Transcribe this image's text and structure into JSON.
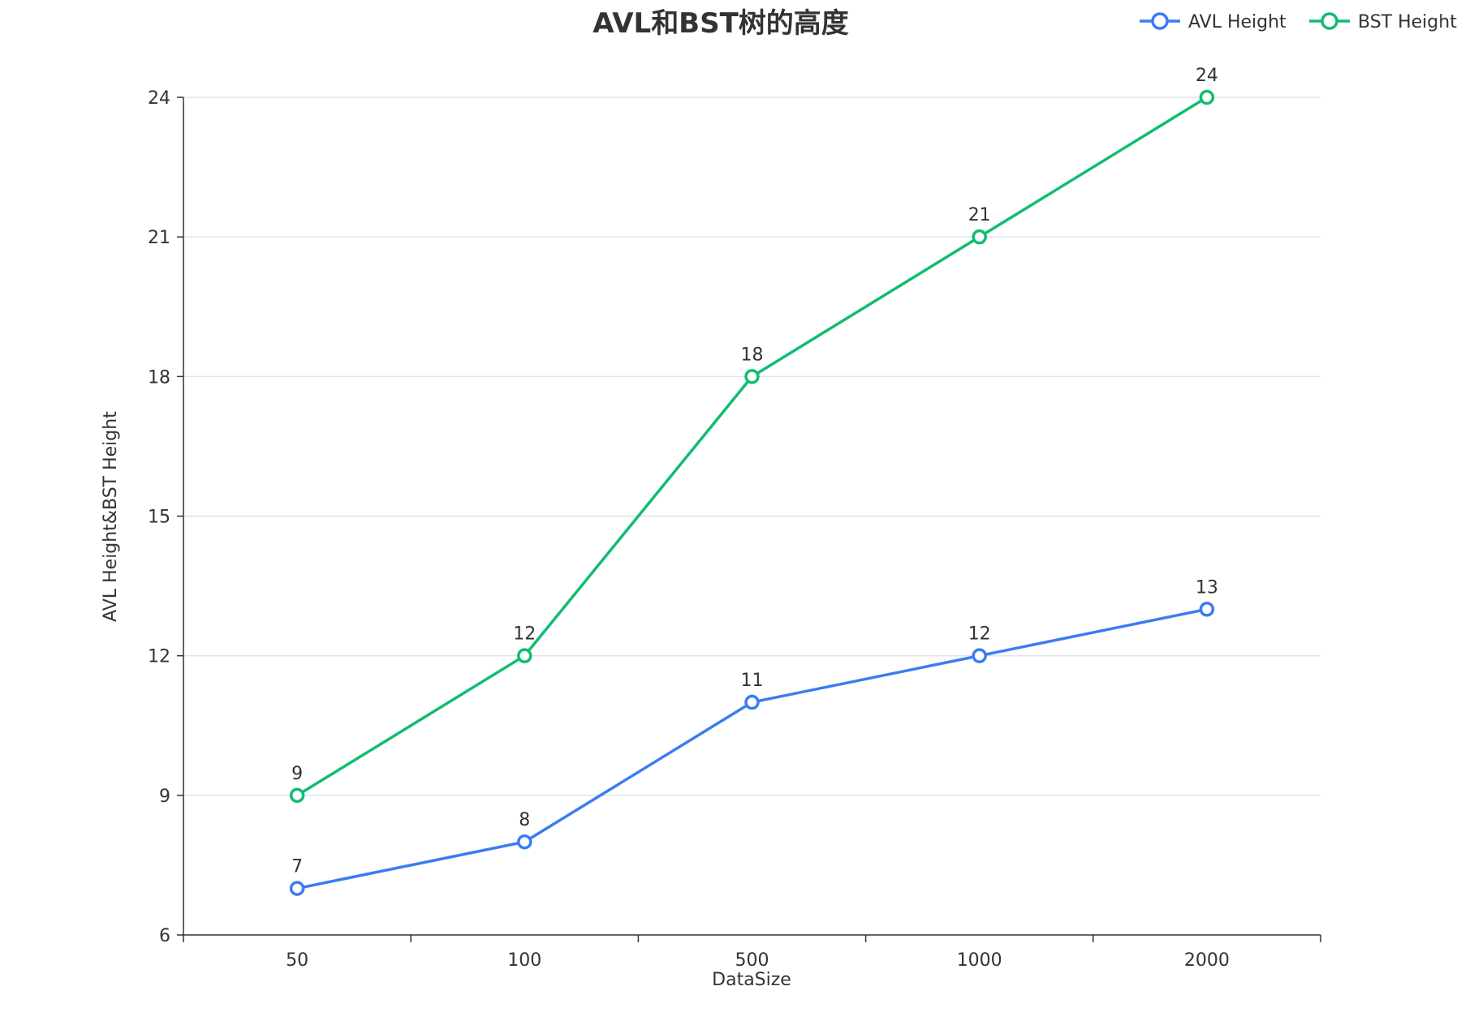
{
  "chart_data": {
    "type": "line",
    "title": "AVL和BST树的高度",
    "xlabel": "DataSize",
    "ylabel": "AVL Height&BST Height",
    "categories": [
      "50",
      "100",
      "500",
      "1000",
      "2000"
    ],
    "series": [
      {
        "name": "AVL Height",
        "values": [
          7,
          8,
          11,
          12,
          13
        ],
        "color": "#3b7cf2"
      },
      {
        "name": "BST Height",
        "values": [
          9,
          12,
          18,
          21,
          24
        ],
        "color": "#10bd6f"
      }
    ],
    "ylim": [
      6,
      24
    ],
    "yticks": [
      6,
      9,
      12,
      15,
      18,
      21,
      24
    ],
    "grid": true,
    "legend_position": "top-right",
    "data_labels": true
  }
}
